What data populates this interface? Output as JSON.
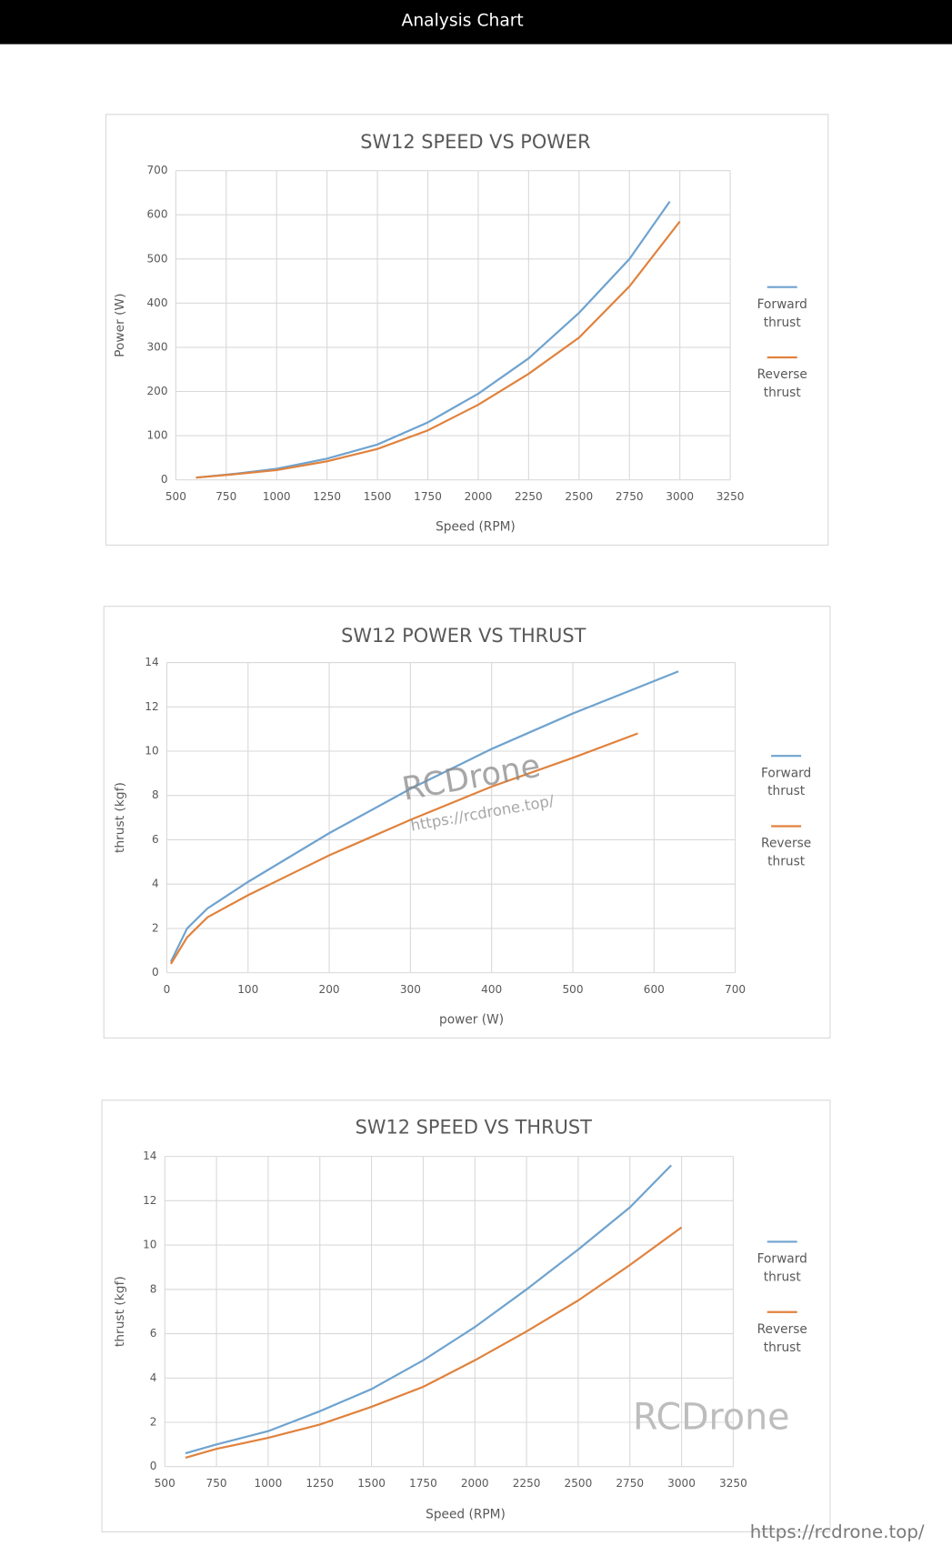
{
  "header": "Analysis Chart",
  "watermarks": [
    "RCDrone",
    "https://rcdrone.top/",
    "RCDrone",
    "https://rcdrone.top/"
  ],
  "chart_data": [
    {
      "type": "line",
      "title": "SW12 SPEED VS POWER",
      "x_label": "Speed (RPM)",
      "y_label": "Power (W)",
      "xlim": [
        500,
        3250
      ],
      "xticks": [
        500,
        750,
        1000,
        1250,
        1500,
        1750,
        2000,
        2250,
        2500,
        2750,
        3000,
        3250
      ],
      "ylim": [
        0,
        700
      ],
      "yticks": [
        0,
        100,
        200,
        300,
        400,
        500,
        600,
        700
      ],
      "grid": true,
      "legend": "right",
      "series": [
        {
          "name": "Forward thrust",
          "color": "#6fa3cf",
          "x": [
            600,
            800,
            1000,
            1250,
            1500,
            1750,
            2000,
            2250,
            2500,
            2750,
            2950
          ],
          "values": [
            5,
            14,
            25,
            48,
            80,
            130,
            195,
            275,
            378,
            500,
            630
          ]
        },
        {
          "name": "Reverse thrust",
          "color": "#e0823d",
          "x": [
            600,
            800,
            1000,
            1250,
            1500,
            1750,
            2000,
            2250,
            2500,
            2750,
            3000
          ],
          "values": [
            5,
            13,
            22,
            42,
            70,
            112,
            170,
            240,
            322,
            438,
            585
          ]
        }
      ]
    },
    {
      "type": "line",
      "title": "SW12 POWER VS THRUST",
      "x_label": "power (W)",
      "y_label": "thrust (kgf)",
      "xlim": [
        0,
        700
      ],
      "xticks": [
        0,
        100,
        200,
        300,
        400,
        500,
        600,
        700
      ],
      "ylim": [
        0,
        14
      ],
      "yticks": [
        0,
        2,
        4,
        6,
        8,
        10,
        12,
        14
      ],
      "grid": true,
      "legend": "right",
      "series": [
        {
          "name": "Forward thrust",
          "color": "#6fa3cf",
          "x": [
            5,
            25,
            50,
            100,
            200,
            300,
            400,
            500,
            630
          ],
          "values": [
            0.5,
            2,
            2.9,
            4.1,
            6.3,
            8.3,
            10.1,
            11.7,
            13.6
          ]
        },
        {
          "name": "Reverse thrust",
          "color": "#e0823d",
          "x": [
            5,
            25,
            50,
            100,
            150,
            200,
            300,
            400,
            500,
            580
          ],
          "values": [
            0.4,
            1.6,
            2.5,
            3.5,
            4.4,
            5.3,
            6.9,
            8.4,
            9.7,
            10.8
          ]
        }
      ]
    },
    {
      "type": "line",
      "title": "SW12 SPEED VS THRUST",
      "x_label": "Speed (RPM)",
      "y_label": "thrust (kgf)",
      "xlim": [
        500,
        3250
      ],
      "xticks": [
        500,
        750,
        1000,
        1250,
        1500,
        1750,
        2000,
        2250,
        2500,
        2750,
        3000,
        3250
      ],
      "ylim": [
        0,
        14
      ],
      "yticks": [
        0,
        2,
        4,
        6,
        8,
        10,
        12,
        14
      ],
      "grid": true,
      "legend": "right",
      "series": [
        {
          "name": "Forward thrust",
          "color": "#6fa3cf",
          "x": [
            600,
            750,
            1000,
            1250,
            1500,
            1750,
            2000,
            2250,
            2500,
            2750,
            2950
          ],
          "values": [
            0.6,
            1.0,
            1.6,
            2.5,
            3.5,
            4.8,
            6.3,
            8.0,
            9.8,
            11.7,
            13.6
          ]
        },
        {
          "name": "Reverse thrust",
          "color": "#e0823d",
          "x": [
            600,
            750,
            1000,
            1250,
            1500,
            1750,
            2000,
            2250,
            2500,
            2750,
            3000
          ],
          "values": [
            0.4,
            0.8,
            1.3,
            1.9,
            2.7,
            3.6,
            4.8,
            6.1,
            7.5,
            9.1,
            10.8
          ]
        }
      ]
    }
  ]
}
